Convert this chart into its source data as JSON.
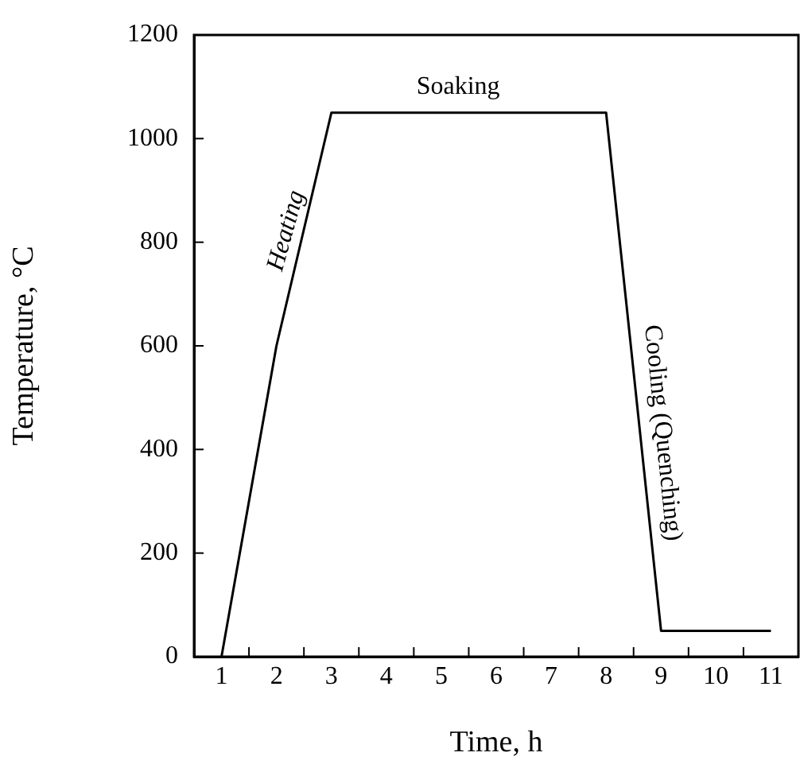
{
  "chart_data": {
    "type": "line",
    "xlabel": "Time, h",
    "ylabel": "Temperature, °C",
    "x": [
      1,
      2,
      3,
      8,
      9,
      11
    ],
    "series": [
      {
        "color": "#000000",
        "values": [
          0,
          600,
          1050,
          1050,
          50,
          50
        ]
      }
    ],
    "xlim": [
      0.5,
      11.5
    ],
    "xticks": [
      1,
      {
        "value": 1.5,
        "label": null
      },
      2,
      {
        "value": 2.5,
        "label": null
      },
      3,
      {
        "value": 3.5,
        "label": null
      },
      4,
      {
        "value": 4.5,
        "label": null
      },
      5,
      {
        "value": 5.5,
        "label": null
      },
      6,
      {
        "value": 6.5,
        "label": null
      },
      7,
      {
        "value": 7.5,
        "label": null
      },
      8,
      {
        "value": 8.5,
        "label": null
      },
      9,
      {
        "value": 9.5,
        "label": null
      },
      10,
      {
        "value": 10.5,
        "label": null
      },
      11
    ],
    "ylim": [
      0,
      1200
    ],
    "yticks": [
      0,
      200,
      400,
      600,
      800,
      1000,
      1200
    ],
    "annotations": [
      "Heating",
      "Soaking",
      "Cooling (Quenching)"
    ],
    "grid": false,
    "legend": false,
    "marker": "none",
    "line_style": "solid"
  }
}
